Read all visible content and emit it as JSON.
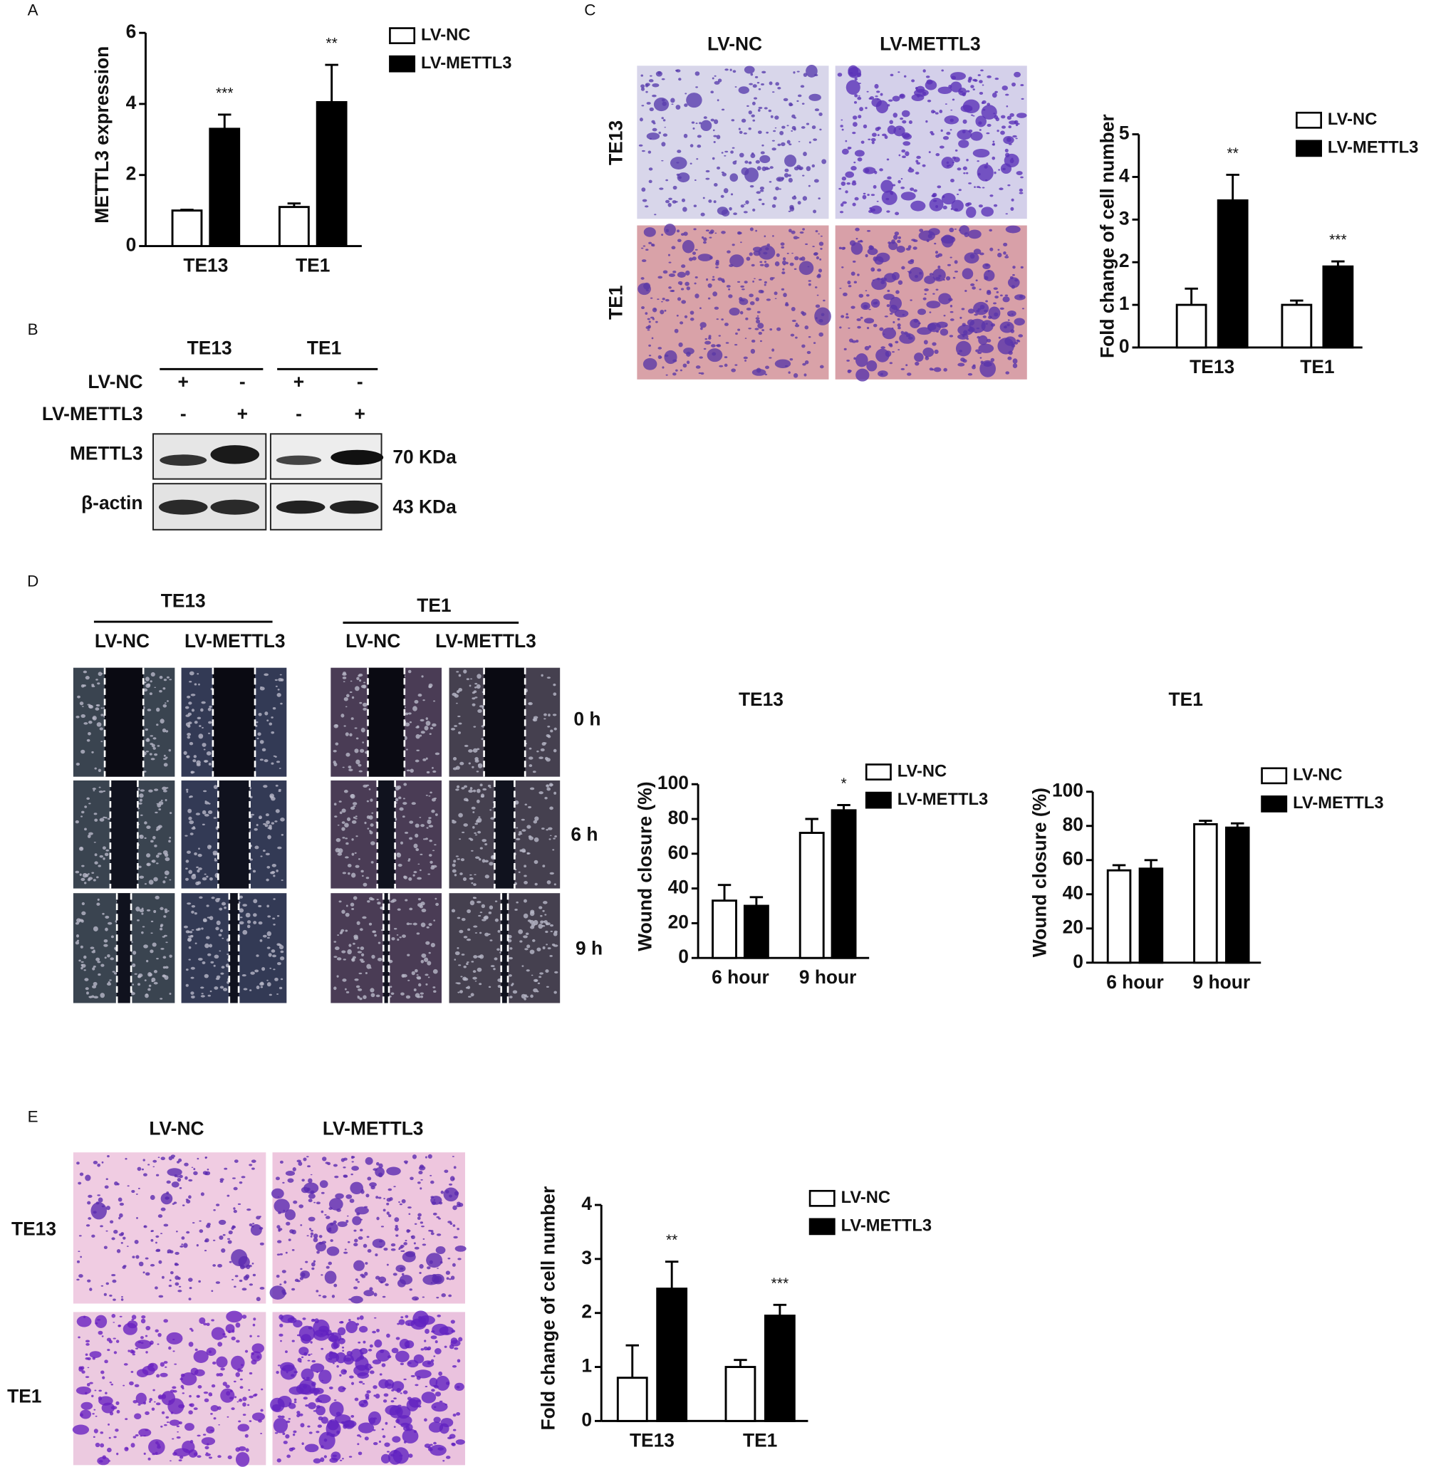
{
  "panel_labels": [
    "A",
    "B",
    "C",
    "D",
    "E"
  ],
  "blot": {
    "groups": [
      "TE13",
      "TE1"
    ],
    "rows": [
      {
        "label": "LV-NC",
        "signs": [
          "+",
          "-",
          "+",
          "-"
        ]
      },
      {
        "label": "LV-METTL3",
        "signs": [
          "-",
          "+",
          "-",
          "+"
        ]
      }
    ],
    "bands": [
      {
        "label": "METTL3",
        "size": "70 KDa"
      },
      {
        "label": "β-actin",
        "size": "43 KDa"
      }
    ]
  },
  "images": {
    "C": {
      "columns": [
        "LV-NC",
        "LV-METTL3"
      ],
      "rows": [
        "TE13",
        "TE1"
      ]
    },
    "D": {
      "groups": [
        {
          "name": "TE13",
          "columns": [
            "LV-NC",
            "LV-METTL3"
          ]
        },
        {
          "name": "TE1",
          "columns": [
            "LV-NC",
            "LV-METTL3"
          ]
        }
      ],
      "times": [
        "0 h",
        "6 h",
        "9 h"
      ]
    },
    "E": {
      "columns": [
        "LV-NC",
        "LV-METTL3"
      ],
      "rows": [
        "TE13",
        "TE1"
      ]
    }
  },
  "chart_data": [
    {
      "type": "bar",
      "y_label": "METTL3 expression",
      "categories": [
        "TE13",
        "TE1"
      ],
      "series": [
        {
          "name": "LV-NC",
          "color": "#ffffff",
          "values": [
            1,
            1.1
          ],
          "errors": [
            0.02,
            0.1
          ]
        },
        {
          "name": "LV-METTL3",
          "color": "#000000",
          "values": [
            3.3,
            4.05
          ],
          "errors": [
            0.4,
            1.05
          ]
        }
      ],
      "annotations": [
        "***",
        "**"
      ],
      "ylim": [
        0,
        6
      ],
      "yticks": [
        0,
        2,
        4,
        6
      ]
    },
    {
      "type": "bar",
      "y_label": "Fold change of cell number",
      "categories": [
        "TE13",
        "TE1"
      ],
      "series": [
        {
          "name": "LV-NC",
          "color": "#ffffff",
          "values": [
            1,
            1
          ],
          "errors": [
            0.38,
            0.1
          ]
        },
        {
          "name": "LV-METTL3",
          "color": "#000000",
          "values": [
            3.45,
            1.9
          ],
          "errors": [
            0.6,
            0.12
          ]
        }
      ],
      "annotations": [
        "**",
        "***"
      ],
      "ylim": [
        0,
        5
      ],
      "yticks": [
        0,
        1,
        2,
        3,
        4,
        5
      ]
    },
    {
      "type": "bar",
      "title": "TE13",
      "y_label": "Wound closure (%)",
      "categories": [
        "6 hour",
        "9 hour"
      ],
      "series": [
        {
          "name": "LV-NC",
          "color": "#ffffff",
          "values": [
            33,
            72
          ],
          "errors": [
            9,
            8
          ]
        },
        {
          "name": "LV-METTL3",
          "color": "#000000",
          "values": [
            30,
            85
          ],
          "errors": [
            5,
            3
          ]
        }
      ],
      "annotations": [
        null,
        "*"
      ],
      "ylim": [
        0,
        100
      ],
      "yticks": [
        0,
        20,
        40,
        60,
        80,
        100
      ]
    },
    {
      "type": "bar",
      "title": "TE1",
      "y_label": "Wound closure (%)",
      "categories": [
        "6 hour",
        "9 hour"
      ],
      "series": [
        {
          "name": "LV-NC",
          "color": "#ffffff",
          "values": [
            54,
            81
          ],
          "errors": [
            3,
            2
          ]
        },
        {
          "name": "LV-METTL3",
          "color": "#000000",
          "values": [
            55,
            79
          ],
          "errors": [
            5,
            2.5
          ]
        }
      ],
      "ylim": [
        0,
        100
      ],
      "yticks": [
        0,
        20,
        40,
        60,
        80,
        100
      ]
    },
    {
      "type": "bar",
      "y_label": "Fold change of cell number",
      "categories": [
        "TE13",
        "TE1"
      ],
      "series": [
        {
          "name": "LV-NC",
          "color": "#ffffff",
          "values": [
            0.8,
            1
          ],
          "errors": [
            0.6,
            0.13
          ]
        },
        {
          "name": "LV-METTL3",
          "color": "#000000",
          "values": [
            2.45,
            1.95
          ],
          "errors": [
            0.5,
            0.2
          ]
        }
      ],
      "annotations": [
        "**",
        "***"
      ],
      "ylim": [
        0,
        4
      ],
      "yticks": [
        0,
        1,
        2,
        3,
        4
      ]
    }
  ]
}
